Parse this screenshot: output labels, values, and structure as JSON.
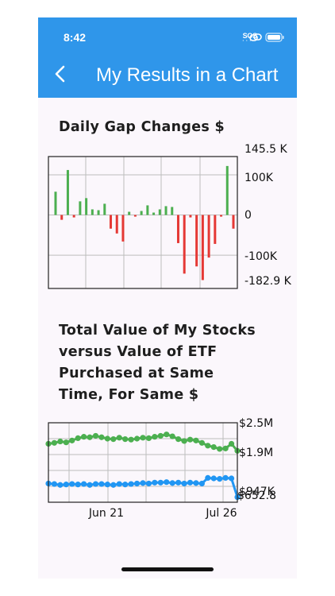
{
  "status_bar": {
    "time": "8:42",
    "sos_label": "SOS"
  },
  "header": {
    "title": "My Results in a Chart"
  },
  "colors": {
    "header_bg": "#2f96ea",
    "positive": "#4caf50",
    "negative": "#e53935",
    "etf": "#4caf50",
    "stocks": "#2196f3"
  },
  "icons": {
    "back": "chevron-left-icon",
    "signal": "satellite-link-icon",
    "battery": "battery-icon"
  },
  "charts": {
    "gap_title": "Daily Gap Changes $",
    "value_title": "Total Value of My Stocks versus Value of ETF Purchased at Same Time, For Same $"
  },
  "chart_data": [
    {
      "type": "bar",
      "title": "Daily Gap Changes $",
      "ylim": [
        -182900,
        145500
      ],
      "ytick_labels": [
        "145.5 K",
        "100K",
        "0",
        "-100K",
        "-182.9 K"
      ],
      "grid": true,
      "values": [
        58000,
        -12000,
        112000,
        -6000,
        34000,
        42000,
        14000,
        12000,
        28000,
        -34000,
        -46000,
        -66000,
        8000,
        -4000,
        10000,
        24000,
        6000,
        14000,
        22000,
        20000,
        -70000,
        -146000,
        -6000,
        -128000,
        -162000,
        -106000,
        -72000,
        -4000,
        122000,
        -34000
      ]
    },
    {
      "type": "line",
      "title": "Total Value of My Stocks versus Value of ETF Purchased at Same Time, For Same $",
      "xtick_labels": [
        "Jun 21",
        "Jul 26"
      ],
      "ytick_labels": [
        "$2.5M",
        "$1.9M",
        "$947K",
        "$652.8"
      ],
      "grid": true,
      "series": [
        {
          "values": [
            2.1,
            2.12,
            2.15,
            2.13,
            2.17,
            2.22,
            2.25,
            2.24,
            2.27,
            2.24,
            2.21,
            2.2,
            2.23,
            2.2,
            2.19,
            2.21,
            2.23,
            2.22,
            2.25,
            2.27,
            2.3,
            2.26,
            2.2,
            2.16,
            2.19,
            2.17,
            2.12,
            2.06,
            2.03,
            1.99,
            2.0,
            2.1,
            1.95
          ]
        },
        {
          "values": [
            1.25,
            1.24,
            1.22,
            1.23,
            1.24,
            1.23,
            1.24,
            1.22,
            1.24,
            1.24,
            1.23,
            1.22,
            1.24,
            1.23,
            1.24,
            1.25,
            1.26,
            1.25,
            1.27,
            1.27,
            1.28,
            1.26,
            1.27,
            1.25,
            1.27,
            1.26,
            1.25,
            1.37,
            1.36,
            1.35,
            1.37,
            1.36,
            0.96
          ]
        }
      ]
    }
  ]
}
